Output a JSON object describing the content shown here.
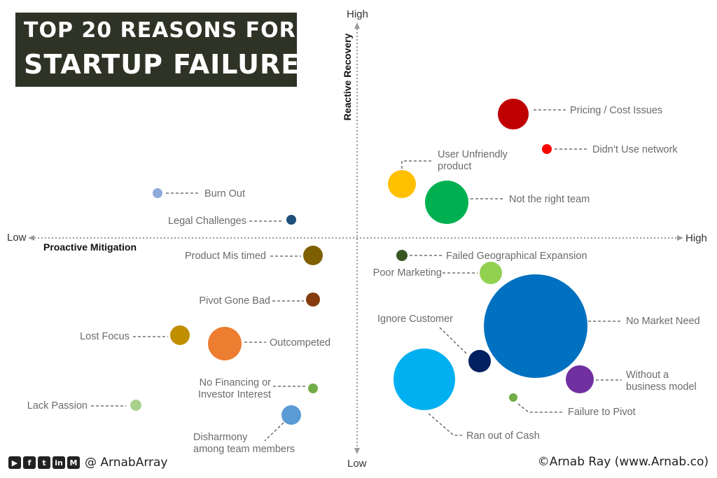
{
  "header": {
    "title_line1": "TOP 20 REASONS FOR",
    "title_line2": "STARTUP FAILURE"
  },
  "footer": {
    "social_icons": [
      "youtube-icon",
      "facebook-icon",
      "twitter-icon",
      "linkedin-icon",
      "mail-icon"
    ],
    "handle": "@ ArnabArray",
    "credit": "©Arnab Ray (www.Arnab.co)"
  },
  "chart_data": {
    "type": "scatter",
    "title": "TOP 20 REASONS FOR STARTUP FAILURE",
    "xlabel": "Proactive Mitigation",
    "ylabel": "Reactive Recovery",
    "x_low_label": "Low",
    "x_high_label": "High",
    "y_low_label": "Low",
    "y_high_label": "High",
    "grid": false,
    "legend": "none",
    "points": [
      {
        "label": "Pricing / Cost Issues",
        "lines": [
          "Pricing / Cost Issues"
        ],
        "color": "#c00000",
        "side": "right"
      },
      {
        "label": "Didn't Use network",
        "lines": [
          "Didn’t Use network"
        ],
        "color": "#ff0000",
        "side": "right"
      },
      {
        "label": "User Unfriendly product",
        "lines": [
          "User Unfriendly",
          "product"
        ],
        "color": "#ffc000",
        "side": "above-right"
      },
      {
        "label": "Not the right team",
        "lines": [
          "Not the right team"
        ],
        "color": "#00b050",
        "side": "right"
      },
      {
        "label": "Burn Out",
        "lines": [
          "Burn Out"
        ],
        "color": "#8ea9db",
        "side": "right"
      },
      {
        "label": "Legal Challenges",
        "lines": [
          "Legal Challenges"
        ],
        "color": "#1f4e79",
        "side": "left"
      },
      {
        "label": "Product Mis timed",
        "lines": [
          "Product Mis timed"
        ],
        "color": "#7f6000",
        "side": "left"
      },
      {
        "label": "Pivot Gone Bad",
        "lines": [
          "Pivot Gone Bad"
        ],
        "color": "#843c0c",
        "side": "left"
      },
      {
        "label": "Lost Focus",
        "lines": [
          "Lost Focus"
        ],
        "color": "#bf8f00",
        "side": "left"
      },
      {
        "label": "Outcompeted",
        "lines": [
          "Outcompeted"
        ],
        "color": "#ed7d31",
        "side": "right"
      },
      {
        "label": "No Financing or Investor Interest",
        "lines": [
          "No Financing or",
          "Investor Interest"
        ],
        "color": "#70ad47",
        "side": "left"
      },
      {
        "label": "Lack Passion",
        "lines": [
          "Lack Passion"
        ],
        "color": "#a9d18e",
        "side": "left"
      },
      {
        "label": "Disharmony among team members",
        "lines": [
          "Disharmony",
          "among team members"
        ],
        "color": "#5b9bd5",
        "side": "below"
      },
      {
        "label": "Failed Geographical Expansion",
        "lines": [
          "Failed Geographical Expansion"
        ],
        "color": "#375623",
        "side": "right"
      },
      {
        "label": "Poor Marketing",
        "lines": [
          "Poor Marketing"
        ],
        "color": "#92d050",
        "side": "left"
      },
      {
        "label": "No Market Need",
        "lines": [
          "No Market Need"
        ],
        "color": "#0070c0",
        "side": "right"
      },
      {
        "label": "Ignore Customer",
        "lines": [
          "Ignore Customer"
        ],
        "color": "#002060",
        "side": "above-left"
      },
      {
        "label": "Without a business model",
        "lines": [
          "Without a",
          "business model"
        ],
        "color": "#7030a0",
        "side": "right"
      },
      {
        "label": "Failure to Pivot",
        "lines": [
          "Failure to Pivot"
        ],
        "color": "#70ad47",
        "side": "below-right"
      },
      {
        "label": "Ran out of Cash",
        "lines": [
          "Ran out of Cash"
        ],
        "color": "#00b0f0",
        "side": "below-right"
      }
    ]
  }
}
